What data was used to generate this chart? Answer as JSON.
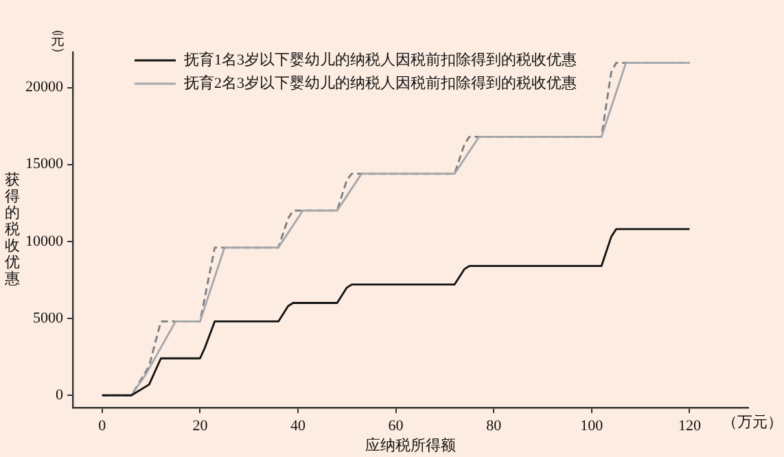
{
  "chart_data": {
    "type": "line",
    "xlabel": "应纳税所得额",
    "ylabel": "获得的税收优惠",
    "annotations": [
      "（元）",
      "（万元）"
    ],
    "xlim": [
      -6,
      132
    ],
    "xticks": [
      0,
      20,
      40,
      60,
      80,
      100,
      120
    ],
    "ylim": [
      -800,
      22300
    ],
    "yticks": [
      0,
      5000,
      10000,
      15000,
      20000
    ],
    "grid": false,
    "legend": "top left",
    "marker": "none",
    "series": [
      {
        "name": "抚育1名3岁以下婴幼儿的纳税人因税前扣除得到的税收优惠",
        "color": "#111111",
        "line_style": "solid",
        "x": [
          0,
          6,
          9.6,
          12,
          20,
          21,
          23,
          36,
          38,
          39,
          48,
          50,
          51,
          72,
          74,
          75,
          102,
          104,
          105,
          120
        ],
        "values": [
          0,
          0,
          700,
          2400,
          2400,
          3100,
          4800,
          4800,
          5800,
          6000,
          6000,
          7000,
          7200,
          7200,
          8200,
          8400,
          8400,
          10300,
          10800,
          10800
        ]
      },
      {
        "name": "抚育2名3岁以下婴幼儿的纳税人因税前扣除得到的税收优惠",
        "color": "#a3a6ab",
        "line_style": "solid",
        "x": [
          0,
          6,
          9,
          15,
          20,
          25,
          36,
          41,
          48,
          53,
          72,
          77,
          102,
          107,
          120
        ],
        "values": [
          0,
          0,
          1400,
          4800,
          4800,
          9600,
          9600,
          12000,
          12000,
          14400,
          14400,
          16800,
          16800,
          21600,
          21600
        ]
      },
      {
        "color": "#7a7d82",
        "line_style": "dashed",
        "x": [
          0,
          6,
          9.6,
          12,
          20,
          23,
          36,
          38,
          39,
          48,
          50,
          51,
          72,
          74,
          75,
          102,
          104,
          105,
          120
        ],
        "values": [
          0,
          0,
          1900,
          4800,
          4800,
          9600,
          9600,
          11500,
          12000,
          12000,
          14000,
          14400,
          14400,
          16300,
          16800,
          16800,
          21000,
          21600,
          21600
        ]
      }
    ]
  }
}
